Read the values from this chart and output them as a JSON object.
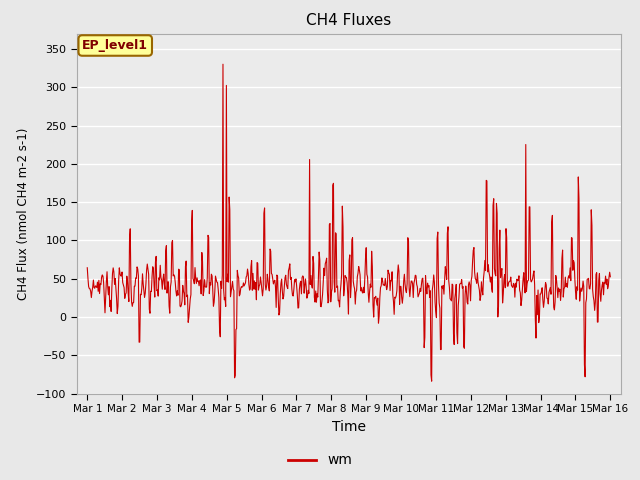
{
  "title": "CH4 Fluxes",
  "xlabel": "Time",
  "ylabel": "CH4 Flux (nmol CH4 m-2 s-1)",
  "ylim": [
    -100,
    370
  ],
  "yticks": [
    -100,
    -50,
    0,
    50,
    100,
    150,
    200,
    250,
    300,
    350
  ],
  "line_color": "#cc0000",
  "line_width": 0.8,
  "legend_label": "wm",
  "annotation_text": "EP_level1",
  "background_color": "#e8e8e8",
  "plot_bg_color": "#ebebeb",
  "xtick_labels": [
    "Mar 1",
    "Mar 2",
    "Mar 3",
    "Mar 4",
    "Mar 5",
    "Mar 6",
    "Mar 7",
    "Mar 8",
    "Mar 9",
    "Mar 10",
    "Mar 11",
    "Mar 12",
    "Mar 13",
    "Mar 14",
    "Mar 15",
    "Mar 16"
  ],
  "n_days": 16,
  "points_per_day": 48,
  "seed": 7
}
